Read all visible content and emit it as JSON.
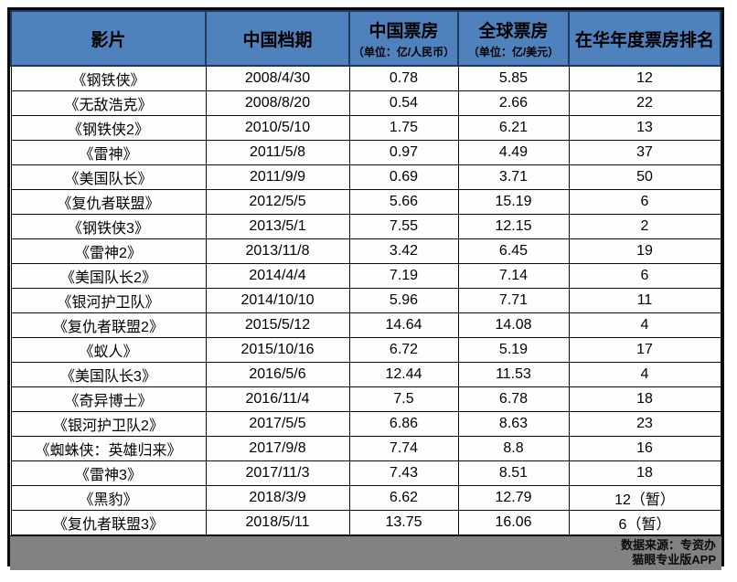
{
  "chart_data": {
    "type": "table",
    "title": "",
    "columns": [
      {
        "label": "影片",
        "sub": ""
      },
      {
        "label": "中国档期",
        "sub": ""
      },
      {
        "label": "中国票房",
        "sub": "（单位：亿/人民币）"
      },
      {
        "label": "全球票房",
        "sub": "（单位：亿/美元）"
      },
      {
        "label": "在华年度票房排名",
        "sub": ""
      }
    ],
    "rows": [
      [
        "《钢铁侠》",
        "2008/4/30",
        "0.78",
        "5.85",
        "12"
      ],
      [
        "《无敌浩克》",
        "2008/8/20",
        "0.54",
        "2.66",
        "22"
      ],
      [
        "《钢铁侠2》",
        "2010/5/10",
        "1.75",
        "6.21",
        "13"
      ],
      [
        "《雷神》",
        "2011/5/8",
        "0.97",
        "4.49",
        "37"
      ],
      [
        "《美国队长》",
        "2011/9/9",
        "0.69",
        "3.71",
        "50"
      ],
      [
        "《复仇者联盟》",
        "2012/5/5",
        "5.66",
        "15.19",
        "6"
      ],
      [
        "《钢铁侠3》",
        "2013/5/1",
        "7.55",
        "12.15",
        "2"
      ],
      [
        "《雷神2》",
        "2013/11/8",
        "3.42",
        "6.45",
        "19"
      ],
      [
        "《美国队长2》",
        "2014/4/4",
        "7.19",
        "7.14",
        "6"
      ],
      [
        "《银河护卫队》",
        "2014/10/10",
        "5.96",
        "7.71",
        "11"
      ],
      [
        "《复仇者联盟2》",
        "2015/5/12",
        "14.64",
        "14.08",
        "4"
      ],
      [
        "《蚁人》",
        "2015/10/16",
        "6.72",
        "5.19",
        "17"
      ],
      [
        "《美国队长3》",
        "2016/5/6",
        "12.44",
        "11.53",
        "4"
      ],
      [
        "《奇异博士》",
        "2016/11/4",
        "7.5",
        "6.78",
        "18"
      ],
      [
        "《银河护卫队2》",
        "2017/5/5",
        "6.86",
        "8.63",
        "23"
      ],
      [
        "《蜘蛛侠：英雄归来》",
        "2017/9/8",
        "7.74",
        "8.8",
        "16"
      ],
      [
        "《雷神3》",
        "2017/11/3",
        "7.43",
        "8.51",
        "18"
      ],
      [
        "《黑豹》",
        "2018/3/9",
        "6.62",
        "12.79",
        "12（暂）"
      ],
      [
        "《复仇者联盟3》",
        "2018/5/11",
        "13.75",
        "16.06",
        "6（暂）"
      ]
    ]
  },
  "footer": {
    "source_line1": "数据来源：专资办",
    "source_line2": "猫眼专业版APP"
  },
  "colors": {
    "header_bg": "#4f81bd",
    "header_border": "#1e3a5f",
    "body_border": "#0a0a0a",
    "footer_bg": "#828282"
  }
}
